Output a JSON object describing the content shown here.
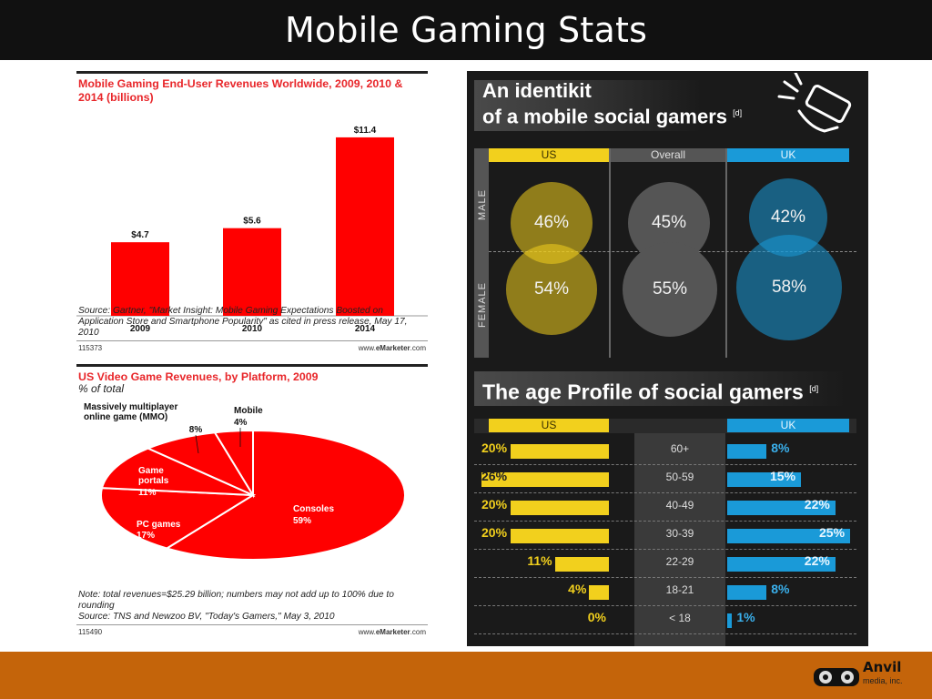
{
  "slide": {
    "title": "Mobile Gaming Stats",
    "logo": {
      "name": "Anvil",
      "sub": "media, inc."
    }
  },
  "chart1": {
    "title": "Mobile Gaming End-User Revenues Worldwide, 2009, 2010 & 2014 (billions)",
    "source": "Source: Gartner, \"Market Insight: Mobile Gaming Expectations Boosted on Application Store and Smartphone Popularity\" as cited in press release, May 17, 2010",
    "id": "115373",
    "brand_pre": "www.",
    "brand_bold": "eMarketer",
    "brand_post": ".com"
  },
  "chart2": {
    "title": "US Video Game Revenues, by Platform, 2009",
    "subtitle": "% of total",
    "note": "Note: total revenues=$25.29 billion; numbers may not add up to 100% due to rounding",
    "source": "Source: TNS and Newzoo BV, \"Today's Gamers,\" May 3, 2010",
    "id": "115490",
    "brand_pre": "www.",
    "brand_bold": "eMarketer",
    "brand_post": ".com"
  },
  "chart_data": [
    {
      "type": "bar",
      "title": "Mobile Gaming End-User Revenues Worldwide, 2009, 2010 & 2014 (billions)",
      "categories": [
        "2009",
        "2010",
        "2014"
      ],
      "values": [
        4.7,
        5.6,
        11.4
      ],
      "data_labels": [
        "$4.7",
        "$5.6",
        "$11.4"
      ],
      "ylim": [
        0,
        12.5
      ],
      "color": "#ff0000",
      "grid": false
    },
    {
      "type": "pie",
      "title": "US Video Game Revenues, by Platform, 2009",
      "subtitle": "% of total",
      "slices": [
        {
          "label": "Consoles",
          "value": 59,
          "display": "59%"
        },
        {
          "label": "PC games",
          "value": 17,
          "display": "17%"
        },
        {
          "label": "Game portals",
          "value": 11,
          "display": "11%"
        },
        {
          "label": "Massively multiplayer online game (MMO)",
          "value": 8,
          "display": "8%"
        },
        {
          "label": "Mobile",
          "value": 4,
          "display": "4%"
        }
      ],
      "color": "#ff0000"
    },
    {
      "type": "table",
      "title": "An identikit of a mobile social gamers",
      "title_line1": "An identikit",
      "title_line2": "of a mobile social gamers",
      "citation": "[d]",
      "columns": [
        "US",
        "Overall",
        "UK"
      ],
      "rows": [
        "MALE",
        "FEMALE"
      ],
      "values": {
        "MALE": [
          "46%",
          "45%",
          "42%"
        ],
        "FEMALE": [
          "54%",
          "55%",
          "58%"
        ]
      },
      "colors": {
        "US": "#f2d01d",
        "Overall": "#555555",
        "UK": "#1a9ad8"
      }
    },
    {
      "type": "bar",
      "title": "The age Profile of social gamers",
      "citation": "[d]",
      "categories": [
        "60+",
        "50-59",
        "40-49",
        "30-39",
        "22-29",
        "18-21",
        "< 18"
      ],
      "series": [
        {
          "name": "US",
          "values": [
            20,
            26,
            20,
            20,
            11,
            4,
            0
          ],
          "labels": [
            "20%",
            "26%",
            "20%",
            "20%",
            "11%",
            "4%",
            "0%"
          ]
        },
        {
          "name": "UK",
          "values": [
            8,
            15,
            22,
            25,
            22,
            8,
            1
          ],
          "labels": [
            "8%",
            "15%",
            "22%",
            "25%",
            "22%",
            "8%",
            "1%"
          ]
        }
      ],
      "colors": {
        "US": "#f2d01d",
        "UK": "#1a9ad8"
      }
    }
  ]
}
